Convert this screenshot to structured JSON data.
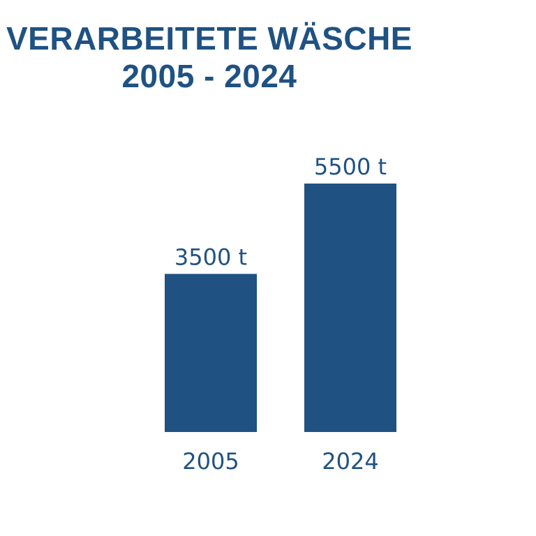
{
  "title": {
    "line1": "VERARBEITETE WÄSCHE",
    "line2": "2005 - 2024"
  },
  "colors": {
    "bar": "#1f5282",
    "text": "#1f5282",
    "background": "#ffffff"
  },
  "chart_data": {
    "type": "bar",
    "title": "VERARBEITETE WÄSCHE 2005 - 2024",
    "categories": [
      "2005",
      "2024"
    ],
    "values": [
      3500,
      5500
    ],
    "value_labels": [
      "3500 t",
      "5500 t"
    ],
    "unit": "t",
    "ylim": [
      0,
      5500
    ],
    "grid": false,
    "legend": "none"
  }
}
